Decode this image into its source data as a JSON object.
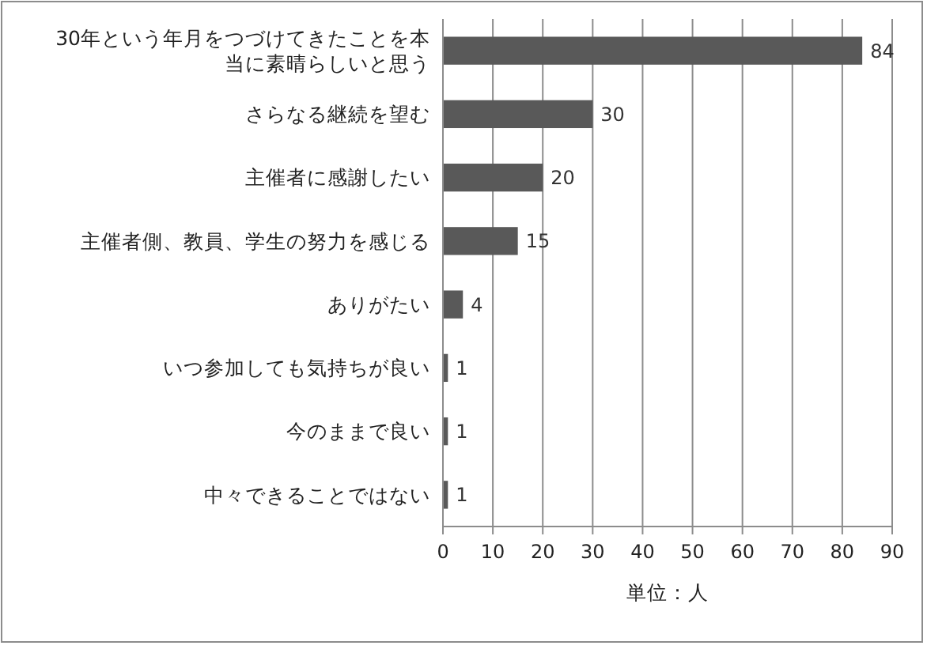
{
  "chart_data": {
    "type": "bar",
    "orientation": "horizontal",
    "categories": [
      "30年という年月をつづけてきたことを本当に素晴らしいと思う",
      "さらなる継続を望む",
      "主催者に感謝したい",
      "主催者側、教員、学生の努力を感じる",
      "ありがたい",
      "いつ参加しても気持ちが良い",
      "今のままで良い",
      "中々できることではない"
    ],
    "values": [
      84,
      30,
      20,
      15,
      4,
      1,
      1,
      1
    ],
    "color": "#595959",
    "xlabel": "単位：人",
    "xlim": [
      0,
      90
    ],
    "xticks": [
      0,
      10,
      20,
      30,
      40,
      50,
      60,
      70,
      80,
      90
    ],
    "grid": "x",
    "data_labels": true
  }
}
